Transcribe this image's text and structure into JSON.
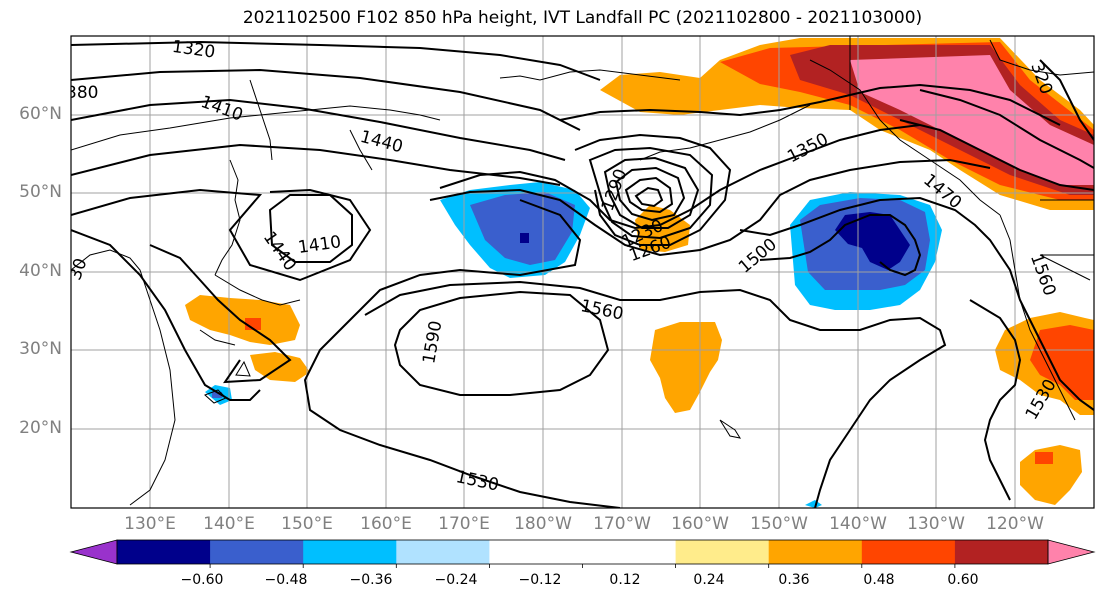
{
  "title": "2021102500 F102 850 hPa height, IVT Landfall PC (2021102800 - 2021103000)",
  "lat_labels": [
    "60°N",
    "50°N",
    "40°N",
    "30°N",
    "20°N"
  ],
  "lon_labels": [
    "130°E",
    "140°E",
    "150°E",
    "160°E",
    "170°E",
    "180°W",
    "170°W",
    "160°W",
    "150°W",
    "140°W",
    "130°W",
    "120°W"
  ],
  "contour_labels": {
    "c1320": "1320",
    "c380": "380",
    "c1410a": "1410",
    "c1440a": "1440",
    "c1410b": "1410",
    "c1440b": "1440",
    "c1350": "1350",
    "c1470": "1470",
    "c1500": "1500",
    "c1560a": "1560",
    "c1560b": "1560",
    "c1590": "1590",
    "c1530a": "1530",
    "c1530b": "1530",
    "c1230": "1230",
    "c1260": "1260",
    "c1290": "1290",
    "c1320b": "1320",
    "c1320c": "320",
    "c30": "30"
  },
  "colorbar": {
    "colors": [
      "#9932cc",
      "#00008b",
      "#3a5fcd",
      "#00bfff",
      "#b0e2ff",
      "#ffffff",
      "#ffffff",
      "#ffec8b",
      "#ffa500",
      "#ff4500",
      "#b22222",
      "#ff82ab"
    ],
    "tick_labels": [
      "−0.60",
      "−0.48",
      "−0.36",
      "−0.24",
      "−0.12",
      "0.12",
      "0.24",
      "0.36",
      "0.48",
      "0.60"
    ]
  }
}
